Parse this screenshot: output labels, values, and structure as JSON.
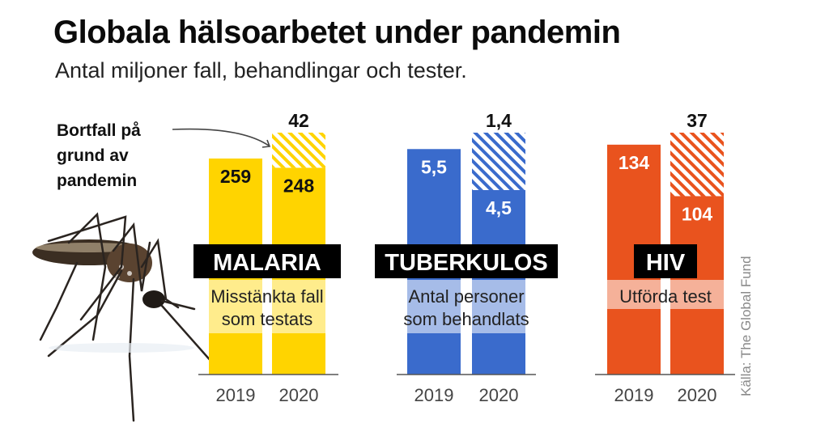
{
  "header": {
    "title": "Globala hälsoarbetet under pandemin",
    "subtitle": "Antal miljoner fall, behandlingar och tester."
  },
  "annotation": {
    "line1": "Bortfall på",
    "line2": "grund av",
    "line3": "pandemin"
  },
  "source": "Källa: The Global Fund",
  "colors": {
    "malaria": "#FFD400",
    "tuberkulos": "#3A6BCC",
    "hiv": "#E9531E",
    "label_bg": "#000000"
  },
  "chart_data": [
    {
      "type": "bar",
      "name": "MALARIA",
      "description": "Misstänkta fall som testats",
      "desc_line1": "Misstänkta fall",
      "desc_line2": "som testats",
      "categories": [
        "2019",
        "2020"
      ],
      "values": [
        259,
        248
      ],
      "value_labels": [
        "259",
        "248"
      ],
      "loss": 42,
      "loss_label": "42",
      "color": "#FFD400",
      "text_color": "#111111",
      "scale_max": 290
    },
    {
      "type": "bar",
      "name": "TUBERKULOS",
      "description": "Antal personer som behandlats",
      "desc_line1": "Antal personer",
      "desc_line2": "som behandlats",
      "categories": [
        "2019",
        "2020"
      ],
      "values": [
        5.5,
        4.5
      ],
      "value_labels": [
        "5,5",
        "4,5"
      ],
      "loss": 1.4,
      "loss_label": "1,4",
      "color": "#3A6BCC",
      "text_color": "#ffffff",
      "scale_max": 5.9
    },
    {
      "type": "bar",
      "name": "HIV",
      "description": "Utförda test",
      "desc_line1": "Utförda test",
      "desc_line2": "",
      "categories": [
        "2019",
        "2020"
      ],
      "values": [
        134,
        104
      ],
      "value_labels": [
        "134",
        "104"
      ],
      "loss": 37,
      "loss_label": "37",
      "color": "#E9531E",
      "text_color": "#ffffff",
      "scale_max": 141
    }
  ]
}
